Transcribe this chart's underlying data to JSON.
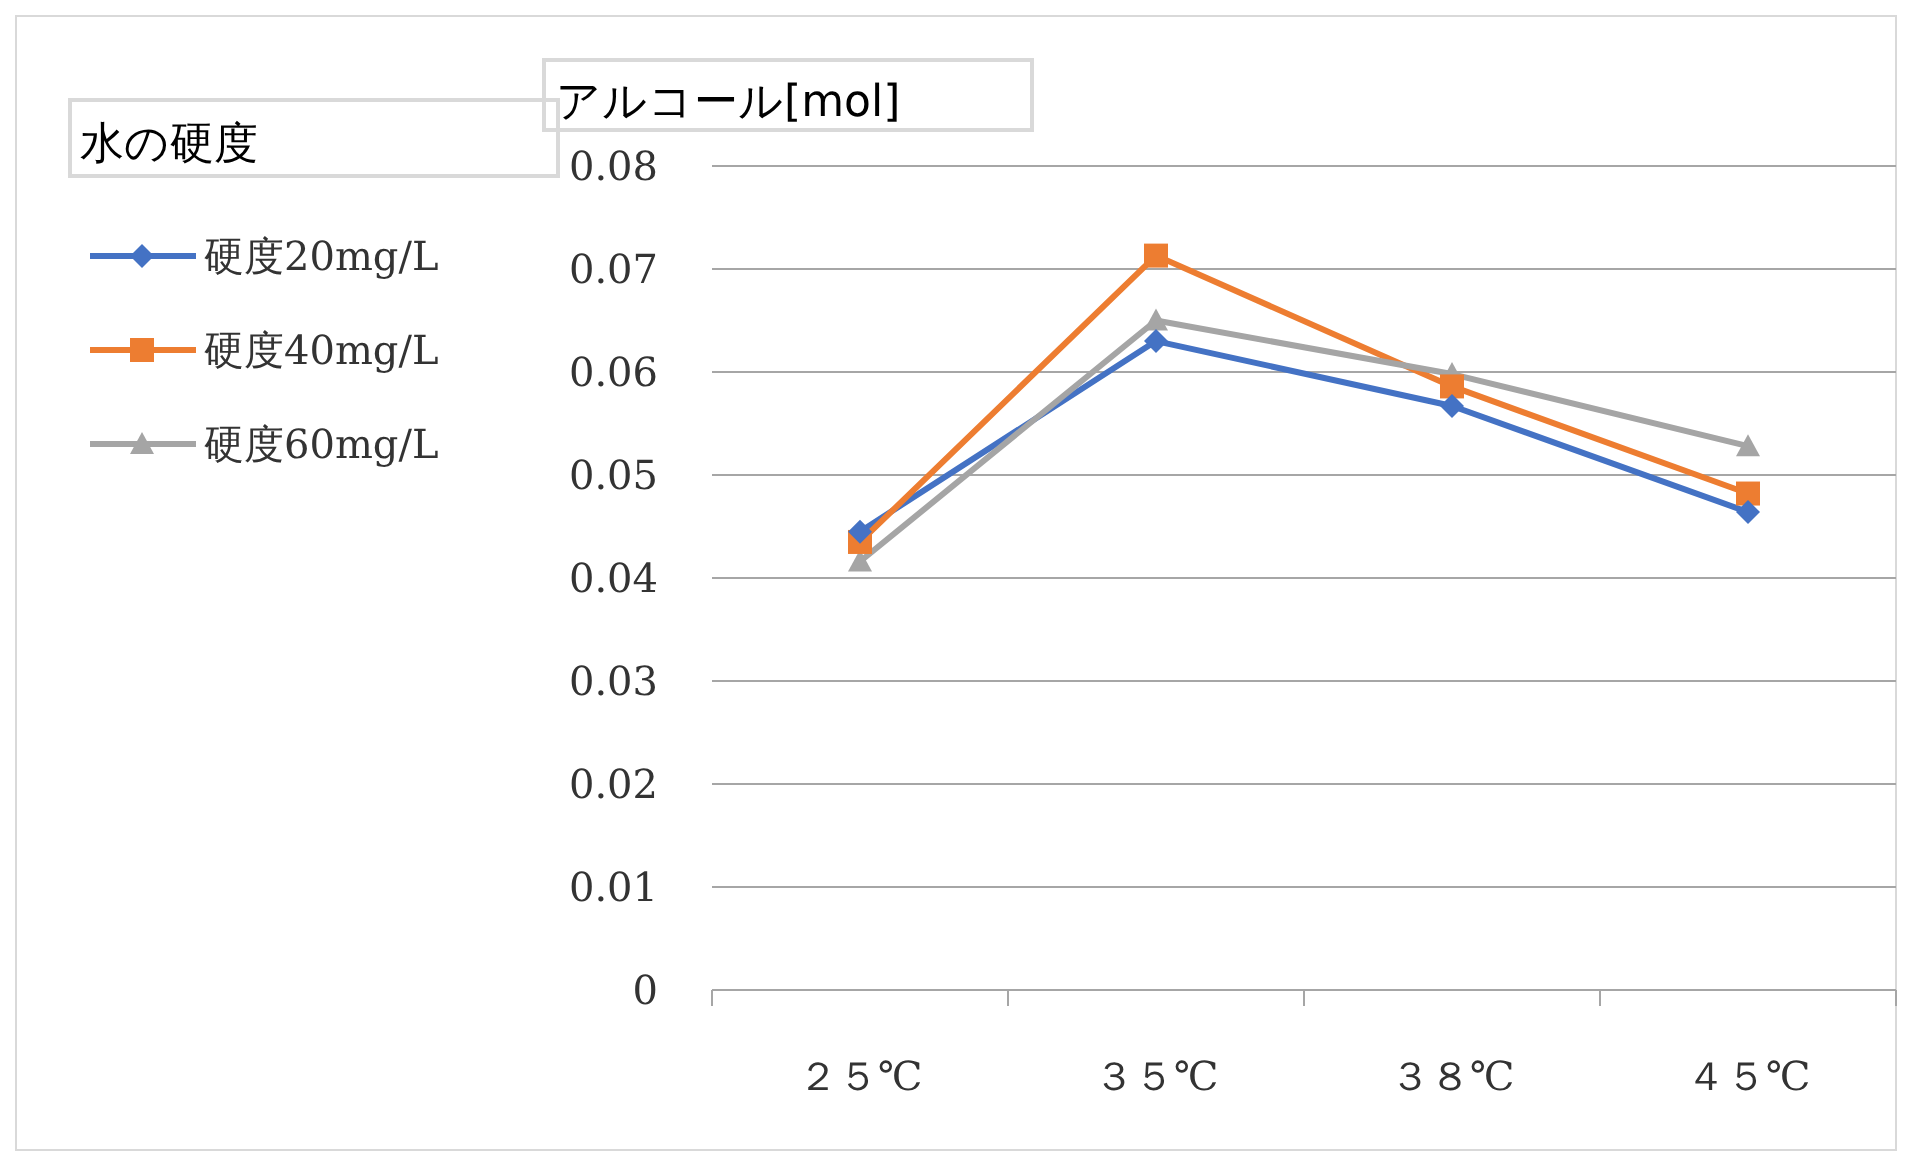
{
  "chart_data": {
    "type": "line",
    "ylabel": "アルコール[mol]",
    "legend_title": "水の硬度",
    "categories": [
      "２５℃",
      "３５℃",
      "３８℃",
      "４５℃"
    ],
    "series": [
      {
        "name": "硬度20mg/L",
        "color": "#4472c4",
        "marker": "diamond",
        "values": [
          0.0445,
          0.063,
          0.0567,
          0.0464
        ]
      },
      {
        "name": "硬度40mg/L",
        "color": "#ed7d31",
        "marker": "square",
        "values": [
          0.0435,
          0.0713,
          0.0586,
          0.0482
        ]
      },
      {
        "name": "硬度60mg/L",
        "color": "#a5a5a5",
        "marker": "triangle",
        "values": [
          0.0416,
          0.065,
          0.0598,
          0.0528
        ]
      }
    ],
    "ylim": [
      0,
      0.08
    ],
    "yticks": [
      {
        "value": 0,
        "label": "0"
      },
      {
        "value": 0.01,
        "label": "0.01"
      },
      {
        "value": 0.02,
        "label": "0.02"
      },
      {
        "value": 0.03,
        "label": "0.03"
      },
      {
        "value": 0.04,
        "label": "0.04"
      },
      {
        "value": 0.05,
        "label": "0.05"
      },
      {
        "value": 0.06,
        "label": "0.06"
      },
      {
        "value": 0.07,
        "label": "0.07"
      },
      {
        "value": 0.08,
        "label": "0.08"
      }
    ],
    "grid": "y",
    "legend": "left",
    "line_style": "solid"
  }
}
